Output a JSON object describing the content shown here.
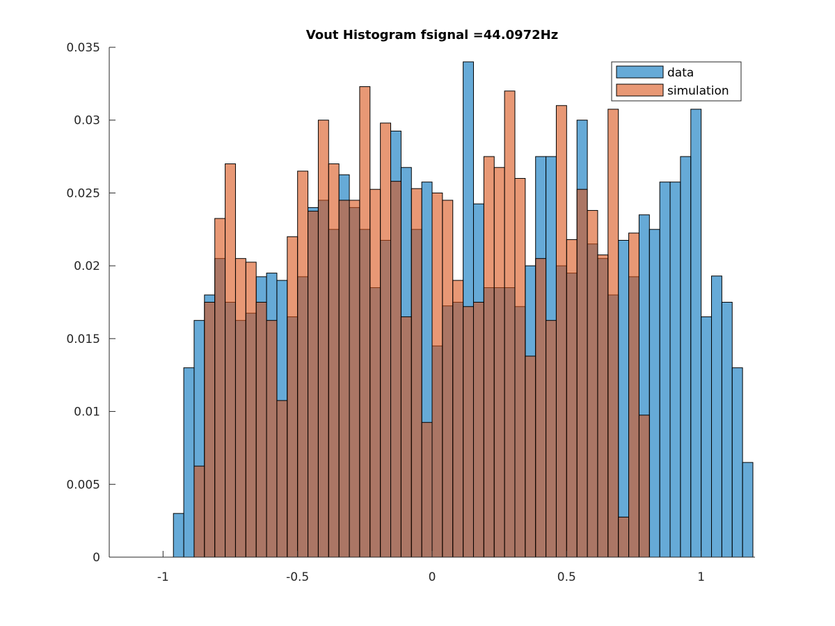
{
  "chart_data": {
    "type": "bar",
    "subtype": "overlaid-histogram",
    "title": "Vout Histogram fsignal =44.0972Hz",
    "xlabel": "",
    "ylabel": "",
    "xlim": [
      -1.2,
      1.2
    ],
    "ylim": [
      0,
      0.035
    ],
    "xticks": [
      -1,
      -0.5,
      0,
      0.5,
      1
    ],
    "xtick_labels": [
      "-1",
      "-0.5",
      "0",
      "0.5",
      "1"
    ],
    "yticks": [
      0,
      0.005,
      0.01,
      0.015,
      0.02,
      0.025,
      0.03,
      0.035
    ],
    "ytick_labels": [
      "0",
      "0.005",
      "0.01",
      "0.015",
      "0.02",
      "0.025",
      "0.03",
      "0.035"
    ],
    "grid": false,
    "legend_location": "top-right",
    "bin_width": 0.03846,
    "bin_edges_first": -0.9615,
    "series": [
      {
        "name": "data",
        "color": "#0072BD",
        "opacity": 0.6,
        "values": [
          0.003,
          0.013,
          0.01625,
          0.018,
          0.0205,
          0.0175,
          0.01625,
          0.01675,
          0.01925,
          0.0195,
          0.019,
          0.0165,
          0.01925,
          0.024,
          0.0245,
          0.0225,
          0.02625,
          0.024,
          0.0225,
          0.0185,
          0.02175,
          0.02925,
          0.02675,
          0.0225,
          0.02575,
          0.0145,
          0.01725,
          0.0175,
          0.034,
          0.02425,
          0.0185,
          0.0185,
          0.0185,
          0.0172,
          0.02,
          0.0275,
          0.0275,
          0.02,
          0.0195,
          0.03,
          0.0215,
          0.0205,
          0.018,
          0.02175,
          0.01925,
          0.0235,
          0.0225,
          0.02575,
          0.02575,
          0.0275,
          0.03075,
          0.0165,
          0.0193,
          0.0175,
          0.013,
          0.0065
        ]
      },
      {
        "name": "simulation",
        "color": "#D95319",
        "opacity": 0.6,
        "values": [
          0,
          0,
          0.00625,
          0.0175,
          0.02325,
          0.027,
          0.0205,
          0.02025,
          0.0175,
          0.01625,
          0.01075,
          0.022,
          0.0265,
          0.02375,
          0.03,
          0.027,
          0.0245,
          0.0245,
          0.0323,
          0.02525,
          0.0298,
          0.0258,
          0.0165,
          0.0253,
          0.00925,
          0.025,
          0.0245,
          0.019,
          0.0172,
          0.0175,
          0.0275,
          0.02675,
          0.032,
          0.026,
          0.0138,
          0.0205,
          0.01625,
          0.031,
          0.0218,
          0.02525,
          0.0238,
          0.02075,
          0.03075,
          0.00275,
          0.02225,
          0.00975,
          0,
          0,
          0,
          0,
          0,
          0,
          0,
          0,
          0,
          0
        ]
      }
    ]
  }
}
